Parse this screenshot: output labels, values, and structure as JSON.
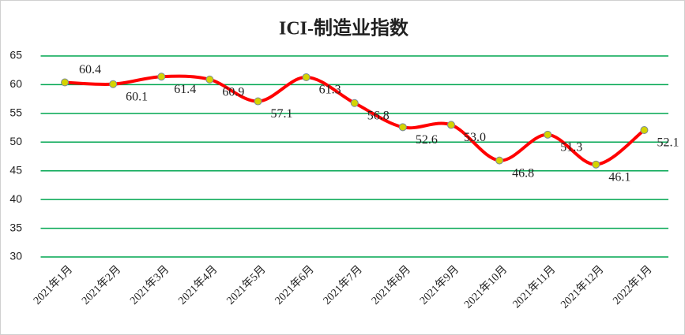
{
  "chart_data": {
    "type": "line",
    "title": "ICI-制造业指数",
    "categories": [
      "2021年1月",
      "2021年2月",
      "2021年3月",
      "2021年4月",
      "2021年5月",
      "2021年6月",
      "2021年7月",
      "2021年8月",
      "2021年9月",
      "2021年10月",
      "2021年11月",
      "2021年12月",
      "2022年1月"
    ],
    "series": [
      {
        "name": "ICI-制造业指数",
        "color": "#ff0000",
        "marker_color": "#d4d400",
        "values": [
          60.4,
          60.1,
          61.4,
          60.9,
          57.1,
          61.3,
          56.8,
          52.6,
          53.0,
          46.8,
          51.3,
          46.1,
          52.1
        ],
        "value_labels": [
          "60.4",
          "60.1",
          "61.4",
          "60.9",
          "57.1",
          "61.3",
          "56.8",
          "52.6",
          "53.0",
          "46.8",
          "51.3",
          "46.1",
          "52.1"
        ]
      }
    ],
    "ylim": [
      30,
      65
    ],
    "yticks": [
      30,
      35,
      40,
      45,
      50,
      55,
      60,
      65
    ],
    "grid": true,
    "grid_color": "#00a650"
  }
}
